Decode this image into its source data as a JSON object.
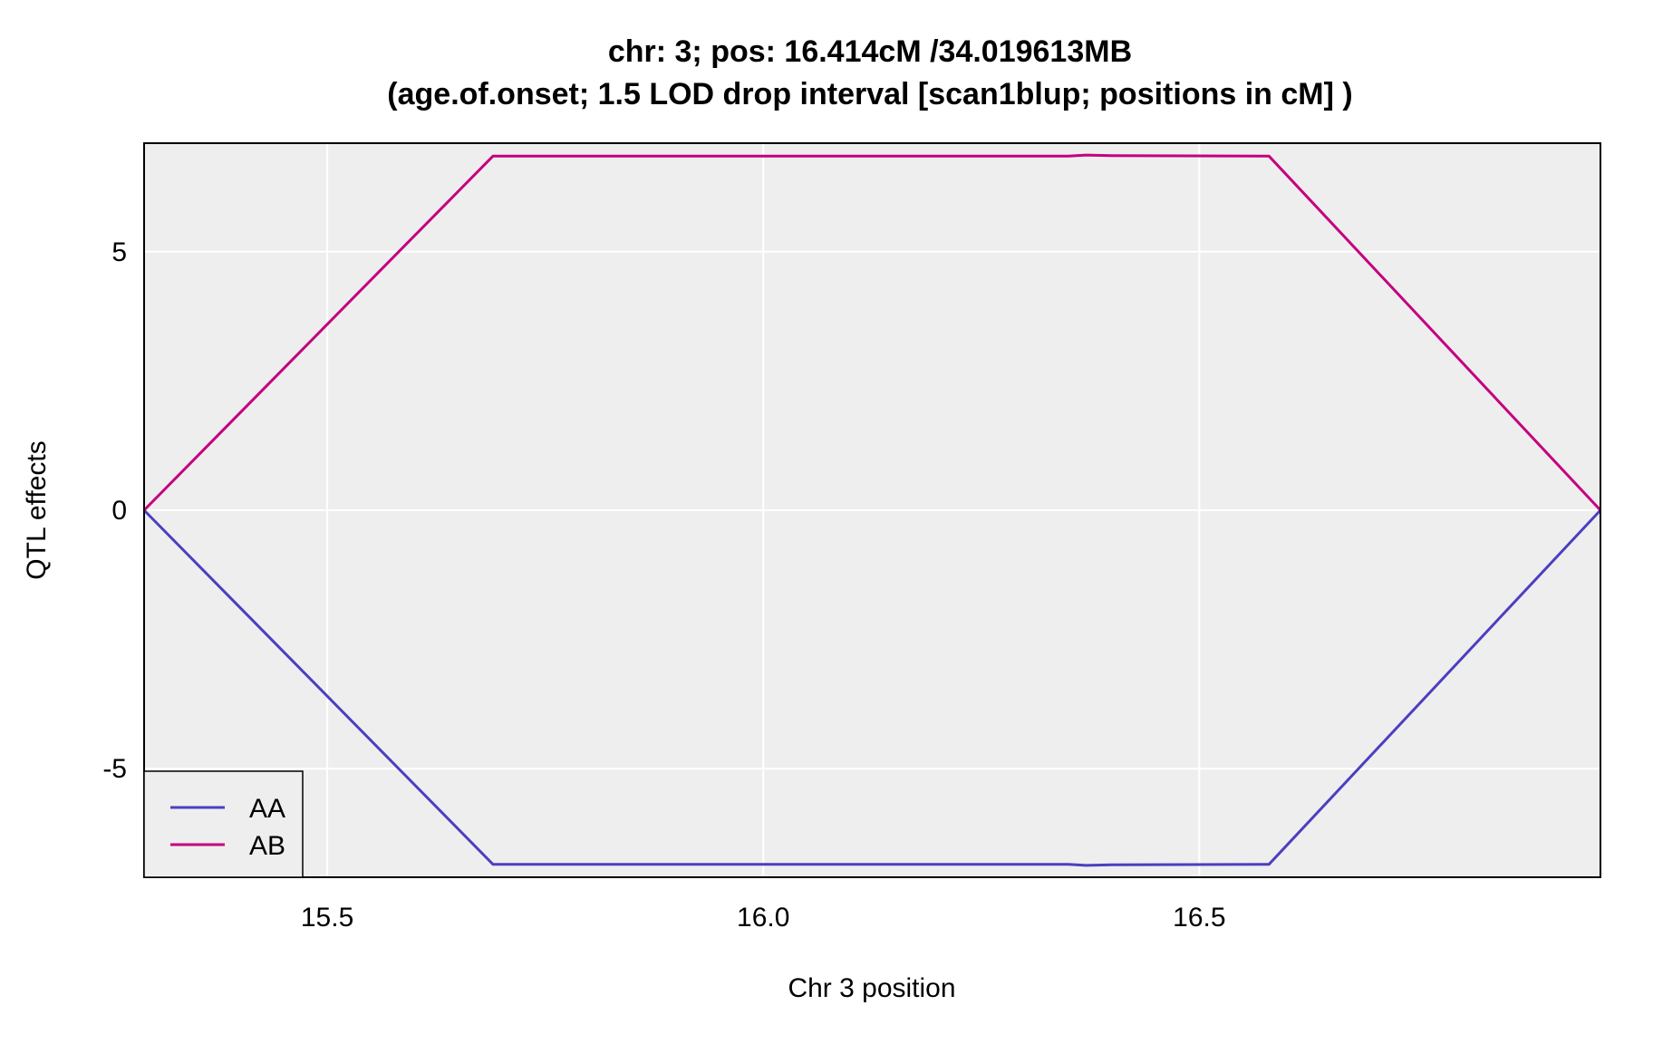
{
  "chart_data": {
    "type": "line",
    "title_line1": "chr: 3; pos: 16.414cM /34.019613MB",
    "title_line2": "(age.of.onset; 1.5 LOD drop interval [scan1blup; positions in cM] )",
    "xlabel": "Chr 3 position",
    "ylabel": "QTL effects",
    "xlim": [
      15.29,
      16.96
    ],
    "ylim": [
      -7.1,
      7.1
    ],
    "x_ticks": [
      15.5,
      16.0,
      16.5
    ],
    "x_tick_labels": [
      "15.5",
      "16.0",
      "16.5"
    ],
    "y_ticks": [
      -5,
      0,
      5
    ],
    "y_tick_labels": [
      "-5",
      "0",
      "5"
    ],
    "grid": true,
    "background": "#eeeeee",
    "grid_color": "#ffffff",
    "legend_position": "bottom-left",
    "series": [
      {
        "name": "AA",
        "color": "#4b3fbf",
        "x": [
          15.29,
          15.69,
          16.0,
          16.35,
          16.37,
          16.4,
          16.58,
          16.96
        ],
        "y": [
          0,
          -6.85,
          -6.85,
          -6.85,
          -6.87,
          -6.86,
          -6.85,
          0
        ]
      },
      {
        "name": "AB",
        "color": "#c4007f",
        "x": [
          15.29,
          15.69,
          16.0,
          16.35,
          16.37,
          16.4,
          16.58,
          16.96
        ],
        "y": [
          0,
          6.85,
          6.85,
          6.85,
          6.87,
          6.86,
          6.85,
          0
        ]
      }
    ]
  }
}
